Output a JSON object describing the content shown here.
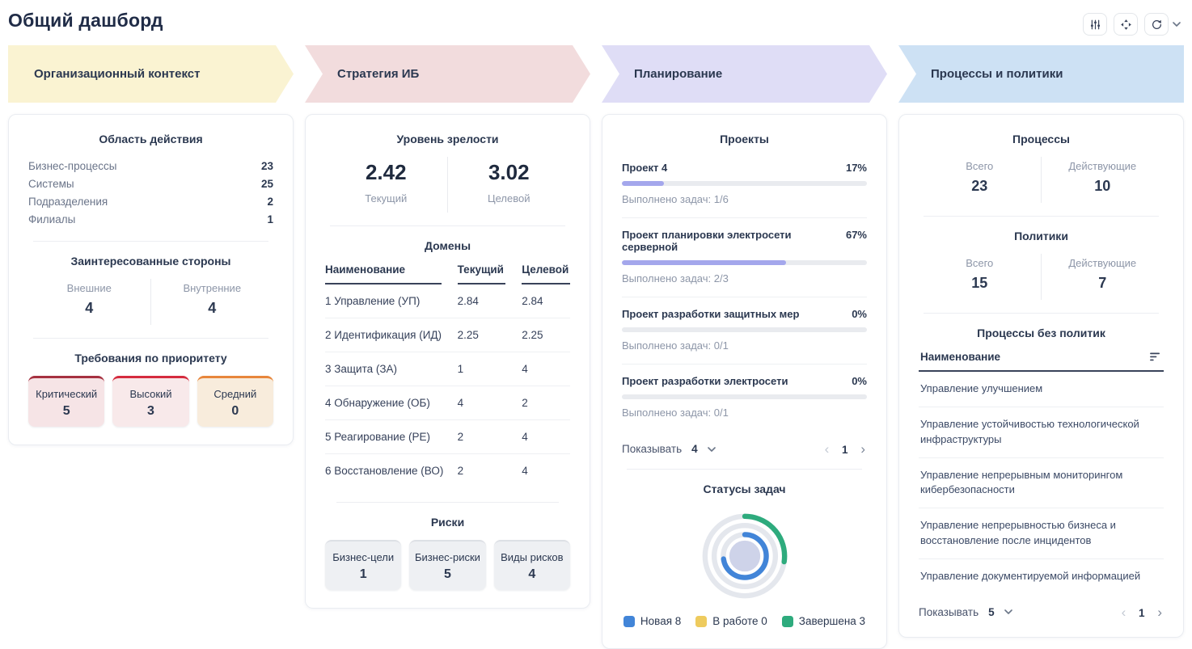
{
  "page": {
    "title": "Общий дашборд"
  },
  "toolbar": {
    "icons": [
      "sliders-icon",
      "move-icon",
      "refresh-icon",
      "chevron-down-icon"
    ]
  },
  "stages": [
    {
      "label": "Организационный контекст",
      "color": "#faf3d2"
    },
    {
      "label": "Стратегия ИБ",
      "color": "#f2dcdd"
    },
    {
      "label": "Планирование",
      "color": "#dfddf6"
    },
    {
      "label": "Процессы и политики",
      "color": "#cde1f4"
    }
  ],
  "org": {
    "scope": {
      "title": "Область действия",
      "rows": [
        {
          "label": "Бизнес-процессы",
          "value": "23"
        },
        {
          "label": "Системы",
          "value": "25"
        },
        {
          "label": "Подразделения",
          "value": "2"
        },
        {
          "label": "Филиалы",
          "value": "1"
        }
      ]
    },
    "stakeholders": {
      "title": "Заинтересованные стороны",
      "items": [
        {
          "label": "Внешние",
          "value": "4"
        },
        {
          "label": "Внутренние",
          "value": "4"
        }
      ]
    },
    "requirements": {
      "title": "Требования по приоритету",
      "items": [
        {
          "label": "Критический",
          "value": "5",
          "accent": "#a63140",
          "bg": "#f6e4e6"
        },
        {
          "label": "Высокий",
          "value": "3",
          "accent": "#d52b3e",
          "bg": "#f8e9ea"
        },
        {
          "label": "Средний",
          "value": "0",
          "accent": "#e8863b",
          "bg": "#f8ecdc"
        }
      ]
    }
  },
  "strategy": {
    "maturity": {
      "title": "Уровень зрелости",
      "items": [
        {
          "value": "2.42",
          "label": "Текущий"
        },
        {
          "value": "3.02",
          "label": "Целевой"
        }
      ]
    },
    "domains": {
      "title": "Домены",
      "columns": [
        "Наименование",
        "Текущий",
        "Целевой"
      ],
      "rows": [
        [
          "1 Управление (УП)",
          "2.84",
          "2.84"
        ],
        [
          "2 Идентификация (ИД)",
          "2.25",
          "2.25"
        ],
        [
          "3 Защита (ЗА)",
          "1",
          "4"
        ],
        [
          "4 Обнаружение (ОБ)",
          "4",
          "2"
        ],
        [
          "5 Реагирование (РЕ)",
          "2",
          "4"
        ],
        [
          "6 Восстановление (ВО)",
          "2",
          "4"
        ]
      ]
    },
    "risks": {
      "title": "Риски",
      "items": [
        {
          "label": "Бизнес-цели",
          "value": "1"
        },
        {
          "label": "Бизнес-риски",
          "value": "5"
        },
        {
          "label": "Виды рисков",
          "value": "4"
        }
      ]
    }
  },
  "planning": {
    "projects": {
      "title": "Проекты",
      "items": [
        {
          "name": "Проект 4",
          "percent": 17,
          "percent_label": "17%",
          "tasks": "Выполнено задач: 1/6"
        },
        {
          "name": "Проект планировки электросети серверной",
          "percent": 67,
          "percent_label": "67%",
          "tasks": "Выполнено задач: 2/3"
        },
        {
          "name": "Проект разработки защитных мер",
          "percent": 0,
          "percent_label": "0%",
          "tasks": "Выполнено задач: 0/1"
        },
        {
          "name": "Проект разработки электросети",
          "percent": 0,
          "percent_label": "0%",
          "tasks": "Выполнено задач: 0/1"
        }
      ],
      "pager": {
        "label": "Показывать",
        "size": "4",
        "page": "1",
        "prev": "‹",
        "next": "›"
      }
    },
    "task_statuses": {
      "title": "Статусы задач",
      "legend": [
        {
          "label": "Новая 8",
          "color": "#4285d8"
        },
        {
          "label": "В работе 0",
          "color": "#eecb5e"
        },
        {
          "label": "Завершена 3",
          "color": "#2eab7d"
        }
      ]
    }
  },
  "procpol": {
    "processes": {
      "title": "Процессы",
      "items": [
        {
          "label": "Всего",
          "value": "23"
        },
        {
          "label": "Действующие",
          "value": "10"
        }
      ]
    },
    "policies": {
      "title": "Политики",
      "items": [
        {
          "label": "Всего",
          "value": "15"
        },
        {
          "label": "Действующие",
          "value": "7"
        }
      ]
    },
    "no_policy": {
      "title": "Процессы без политик",
      "column": "Наименование",
      "rows": [
        "Управление улучшением",
        "Управление устойчивостью технологической инфраструктуры",
        "Управление непрерывным мониторингом кибербезопасности",
        "Управление непрерывностью бизнеса и восстановление после инцидентов",
        "Управление документируемой информацией"
      ],
      "pager": {
        "label": "Показывать",
        "size": "5",
        "page": "1",
        "prev": "‹",
        "next": "›"
      }
    }
  },
  "colors": {
    "progress": "#a4a7ec",
    "progress_track": "#e9ebef"
  },
  "chart_data": {
    "type": "pie",
    "variant": "concentric-rings",
    "title": "Статусы задач",
    "categories": [
      "Новая",
      "В работе",
      "Завершена"
    ],
    "values": [
      8,
      0,
      3
    ],
    "total": 11,
    "colors": [
      "#4285d8",
      "#eecb5e",
      "#2eab7d"
    ],
    "track_color": "#e4e7ed",
    "center_color": "#ced3e9",
    "legend_position": "bottom"
  }
}
